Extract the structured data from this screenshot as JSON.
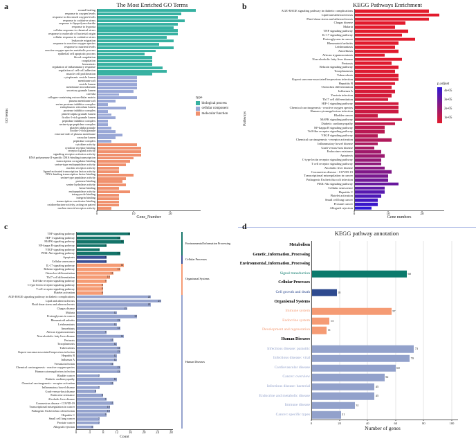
{
  "panel_letters": {
    "a": "a",
    "b": "b",
    "c": "c",
    "d": "d"
  },
  "chart_data": [
    {
      "panel": "a",
      "type": "bar",
      "orientation": "horizontal",
      "title": "The Most Enriched GO Terms",
      "xlabel": "Gene_Number",
      "ylabel": "GO terms",
      "x_ticks": [
        0,
        10,
        20
      ],
      "xlim": [
        0,
        30
      ],
      "grid": false,
      "legend_position": "right",
      "legend": {
        "title": "type",
        "items": [
          {
            "label": "biological process",
            "color": "#36B1A1"
          },
          {
            "label": "cellular component",
            "color": "#99A7D6"
          },
          {
            "label": "molecular function",
            "color": "#F0906D"
          }
        ]
      },
      "groups": [
        {
          "name": "biological process",
          "color": "#36B1A1",
          "bars": [
            [
              "wound healing",
              27
            ],
            [
              "response to oxygen levels",
              23
            ],
            [
              "response to decreased oxygen levels",
              22
            ],
            [
              "response to oxidative stress",
              24
            ],
            [
              "response to lipopolysaccharide",
              22
            ],
            [
              "response to hypoxia",
              21
            ],
            [
              "cellular response to chemical stress",
              22
            ],
            [
              "response to molecule of bacterial origin",
              22
            ],
            [
              "cellular response to oxidative stress",
              19
            ],
            [
              "leukocyte migration",
              21
            ],
            [
              "response to reactive oxygen species",
              17
            ],
            [
              "response to nutrient levels",
              21
            ],
            [
              "reactive oxygen species metabolic process",
              16
            ],
            [
              "epithelial cell apoptotic process",
              13
            ],
            [
              "blood coagulation",
              15
            ],
            [
              "coagulation",
              15
            ],
            [
              "hemostasis",
              15
            ],
            [
              "regulation of inflammatory response",
              18
            ],
            [
              "regulation of cell-cell adhesion",
              19
            ],
            [
              "muscle cell proliferation",
              15
            ]
          ]
        },
        {
          "name": "cellular component",
          "color": "#99A7D6",
          "bars": [
            [
              "cytoplasmic vesicle lumen",
              11
            ],
            [
              "membrane raft",
              11
            ],
            [
              "vesicle lumen",
              11
            ],
            [
              "membrane microdomain",
              11
            ],
            [
              "secretory granule lumen",
              10
            ],
            [
              "caveola",
              6
            ],
            [
              "collagen-containing extracellular matrix",
              11
            ],
            [
              "plasma membrane raft",
              5
            ],
            [
              "serine protease inhibitor complex",
              3
            ],
            [
              "endoplasmic reticulum lumen",
              8
            ],
            [
              "protease inhibitor complex",
              3
            ],
            [
              "platelet alpha granule lumen",
              4
            ],
            [
              "ficolin-1-rich granule lumen",
              5
            ],
            [
              "peptidase inhibitor complex",
              3
            ],
            [
              "serine-type peptidase complex",
              3
            ],
            [
              "platelet alpha granule",
              4
            ],
            [
              "ficolin-1-rich granule",
              5
            ],
            [
              "external side of plasma membrane",
              7
            ],
            [
              "vacuolar lumen",
              5
            ],
            [
              "peptidase complex",
              4
            ]
          ]
        },
        {
          "name": "molecular function",
          "color": "#F0906D",
          "bars": [
            [
              "cytokine activity",
              11
            ],
            [
              "cytokine receptor binding",
              12
            ],
            [
              "receptor ligand activity",
              12
            ],
            [
              "signaling receptor activator activity",
              12
            ],
            [
              "RNA polymerase II-specific DNA-binding transcription",
              10
            ],
            [
              "transcription coregulator binding",
              9
            ],
            [
              "serine-type endopeptidase activity",
              8
            ],
            [
              "nuclear receptor activity",
              6
            ],
            [
              "ligand-activated transcription factor activity",
              6
            ],
            [
              "DNA-binding transcription factor binding",
              10
            ],
            [
              "serine-type peptidase activity",
              8
            ],
            [
              "protease binding",
              7
            ],
            [
              "serine hydrolase activity",
              8
            ],
            [
              "heme binding",
              6
            ],
            [
              "endopeptidase activity",
              9
            ],
            [
              "tetrapyrrole binding",
              6
            ],
            [
              "integrin binding",
              6
            ],
            [
              "transcription coactivator binding",
              6
            ],
            [
              "oxidoreductase activity, acting on paired",
              6
            ],
            [
              "nuclear steroid receptor activity",
              4
            ]
          ]
        }
      ]
    },
    {
      "panel": "b",
      "type": "bar",
      "orientation": "horizontal",
      "title": "KEGG Pathways Enrichment",
      "xlabel": "Gene numbers",
      "ylabel": "Pathways",
      "x_ticks": [
        0,
        10,
        20
      ],
      "xlim": [
        0,
        27
      ],
      "grid": false,
      "color_scale": {
        "title": "p.adjust",
        "ticks": [
          "4e-05",
          "3e-05",
          "2e-05",
          "1e-05"
        ],
        "gradient_from": "#E21A2C",
        "gradient_to": "#2E17D5",
        "gradient_exponent": 3
      },
      "bars": [
        [
          "AGE-RAGE signaling pathway in diabetic complications",
          22
        ],
        [
          "Lipid and atherosclerosis",
          25
        ],
        [
          "Fluid shear stress and atherosclerosis",
          22
        ],
        [
          "Chagas disease",
          15
        ],
        [
          "Malaria",
          12
        ],
        [
          "TNF signaling pathway",
          16
        ],
        [
          "IL-17 signaling pathway",
          14
        ],
        [
          "Proteoglycans in cancer",
          18
        ],
        [
          "Rheumatoid arthritis",
          13
        ],
        [
          "Leishmaniasis",
          12
        ],
        [
          "Amoebiasis",
          13
        ],
        [
          "African trypanosomiasis",
          9
        ],
        [
          "Non-alcoholic fatty liver disease",
          14
        ],
        [
          "Pertussis",
          11
        ],
        [
          "Relaxin signaling pathway",
          13
        ],
        [
          "Toxoplasmosis",
          12
        ],
        [
          "Tuberculosis",
          13
        ],
        [
          "Kaposi sarcoma-associated herpesvirus infection",
          13
        ],
        [
          "Hepatitis B",
          12
        ],
        [
          "Osteoclast differentiation",
          11
        ],
        [
          "Influenza A",
          12
        ],
        [
          "Yersinia infection",
          11
        ],
        [
          "Th17 cell differentiation",
          10
        ],
        [
          "HIF-1 signaling pathway",
          13
        ],
        [
          "Chemical carcinogenesis - reactive oxygen species",
          13
        ],
        [
          "Human cytomegalovirus infection",
          13
        ],
        [
          "Bladder cancer",
          7
        ],
        [
          "MAPK signaling pathway",
          14
        ],
        [
          "Diabetic cardiomyopathy",
          12
        ],
        [
          "NF-kappa B signaling pathway",
          9
        ],
        [
          "Toll-like receptor signaling pathway",
          9
        ],
        [
          "VEGF signaling pathway",
          7
        ],
        [
          "Chemical carcinogenesis - receptor activation",
          11
        ],
        [
          "Inflammatory bowel disease",
          7
        ],
        [
          "Graft-versus-host disease",
          6
        ],
        [
          "Endocrine resistance",
          8
        ],
        [
          "Apoptosis",
          9
        ],
        [
          "C-type lectin receptor signaling pathway",
          8
        ],
        [
          "T cell receptor signaling pathway",
          8
        ],
        [
          "Alcoholic liver disease",
          9
        ],
        [
          "Coronavirus disease - COVID-19",
          11
        ],
        [
          "Transcriptional misregulation in cancer",
          10
        ],
        [
          "Pathogenic Escherichia coli infection",
          10
        ],
        [
          "PI3K-Akt signaling pathway",
          13
        ],
        [
          "Cellular senescence",
          9
        ],
        [
          "Hepatitis C",
          9
        ],
        [
          "Platelet activation",
          8
        ],
        [
          "Small cell lung cancer",
          7
        ],
        [
          "Prostate cancer",
          7
        ],
        [
          "Allograft rejection",
          5
        ]
      ]
    },
    {
      "panel": "c",
      "type": "bar",
      "orientation": "horizontal",
      "title": "",
      "xlabel": "Count",
      "ylabel": "",
      "x_ticks": [
        0,
        4,
        8,
        12,
        16,
        20,
        24,
        28
      ],
      "xlim": [
        0,
        29
      ],
      "grid": false,
      "show_values": true,
      "groups": [
        {
          "name": "Environmental Information Processing",
          "color": "#14756A",
          "bars": [
            [
              "TNF signaling pathway",
              16
            ],
            [
              "HIF-1 signaling pathway",
              13
            ],
            [
              "MAPK signaling pathway",
              14
            ],
            [
              "NF-kappa B signaling pathway",
              9
            ],
            [
              "VEGF signaling pathway",
              7
            ],
            [
              "PI3K-Akt signaling pathway",
              13
            ]
          ]
        },
        {
          "name": "Cellular Processes",
          "color": "#3C5095",
          "bars": [
            [
              "Apoptosis",
              9
            ],
            [
              "Cellular senescence",
              9
            ]
          ]
        },
        {
          "name": "Organismal Systems",
          "color": "#F59B74",
          "bars": [
            [
              "IL-17 signaling pathway",
              14
            ],
            [
              "Relaxin signaling pathway",
              13
            ],
            [
              "Osteoclast differentiation",
              11
            ],
            [
              "Th17 cell differentiation",
              10
            ],
            [
              "Toll-like receptor signaling pathway",
              9
            ],
            [
              "C-type lectin receptor signaling pathway",
              8
            ],
            [
              "T cell receptor signaling pathway",
              8
            ],
            [
              "Platelet activation",
              8
            ]
          ]
        },
        {
          "name": "Human Diseases",
          "color": "#94A2CD",
          "bars": [
            [
              "AGE-RAGE signaling pathway in diabetic complications",
              22
            ],
            [
              "Lipid and atherosclerosis",
              25
            ],
            [
              "Fluid shear stress and atherosclerosis",
              22
            ],
            [
              "Chagas disease",
              15
            ],
            [
              "Malaria",
              12
            ],
            [
              "Proteoglycans in cancer",
              18
            ],
            [
              "Rheumatoid arthritis",
              13
            ],
            [
              "Leishmaniasis",
              12
            ],
            [
              "Amoebiasis",
              13
            ],
            [
              "African trypanosomiasis",
              9
            ],
            [
              "Non-alcoholic fatty liver disease",
              14
            ],
            [
              "Pertussis",
              11
            ],
            [
              "Toxoplasmosis",
              12
            ],
            [
              "Tuberculosis",
              13
            ],
            [
              "Kaposi sarcoma-associated herpesvirus infection",
              13
            ],
            [
              "Hepatitis B",
              12
            ],
            [
              "Influenza A",
              12
            ],
            [
              "Yersinia infection",
              11
            ],
            [
              "Chemical carcinogenesis - reactive oxygen species",
              13
            ],
            [
              "Human cytomegalovirus infection",
              13
            ],
            [
              "Bladder cancer",
              7
            ],
            [
              "Diabetic cardiomyopathy",
              12
            ],
            [
              "Chemical carcinogenesis - receptor activation",
              11
            ],
            [
              "Inflammatory bowel disease",
              7
            ],
            [
              "Graft-versus-host disease",
              6
            ],
            [
              "Endocrine resistance",
              8
            ],
            [
              "Alcoholic liver disease",
              9
            ],
            [
              "Coronavirus disease - COVID-19",
              11
            ],
            [
              "Transcriptional misregulation in cancer",
              10
            ],
            [
              "Pathogenic Escherichia coli infection",
              10
            ],
            [
              "Hepatitis C",
              9
            ],
            [
              "Small cell lung cancer",
              7
            ],
            [
              "Prostate cancer",
              7
            ],
            [
              "Allograft rejection",
              5
            ]
          ]
        }
      ]
    },
    {
      "panel": "d",
      "type": "bar",
      "orientation": "horizontal",
      "title": "KEGG pathway annotation",
      "xlabel": "Number of genes",
      "ylabel": "",
      "x_ticks": [
        0,
        20,
        40,
        60,
        80,
        100
      ],
      "xlim": [
        0,
        107
      ],
      "grid": true,
      "show_values": true,
      "sections": [
        {
          "header": "Metabolism",
          "color": "#000000",
          "items": []
        },
        {
          "header": "Genetic_Information_Processing",
          "color": "#000000",
          "items": []
        },
        {
          "header": "Environmental_Information_Processing",
          "color": "#0B7A6C",
          "items": [
            {
              "label": "Signal transduction",
              "value": 68
            }
          ]
        },
        {
          "header": "Cellular Processes",
          "color": "#2E4A8F",
          "items": [
            {
              "label": "Cell growth and death",
              "value": 18
            }
          ]
        },
        {
          "header": "Organismal Systems",
          "color": "#F59B74",
          "items": [
            {
              "label": "Immune system",
              "value": 57
            },
            {
              "label": "Endocrine system",
              "value": 13
            },
            {
              "label": "Development and regeneration",
              "value": 11
            }
          ]
        },
        {
          "header": "Human Diseases",
          "color": "#92A1CB",
          "items": [
            {
              "label": "Infectious disease: parasitic",
              "value": 73
            },
            {
              "label": "Infectious disease: viral",
              "value": 70
            },
            {
              "label": "Cardiovascular disease",
              "value": 60
            },
            {
              "label": "Cancer: overview",
              "value": 52
            },
            {
              "label": "Infectious disease: bacterial",
              "value": 45
            },
            {
              "label": "Endocrine and metabolic disease",
              "value": 45
            },
            {
              "label": "Immune disease",
              "value": 31
            },
            {
              "label": "Cancer: specific types",
              "value": 21
            }
          ]
        }
      ]
    }
  ]
}
